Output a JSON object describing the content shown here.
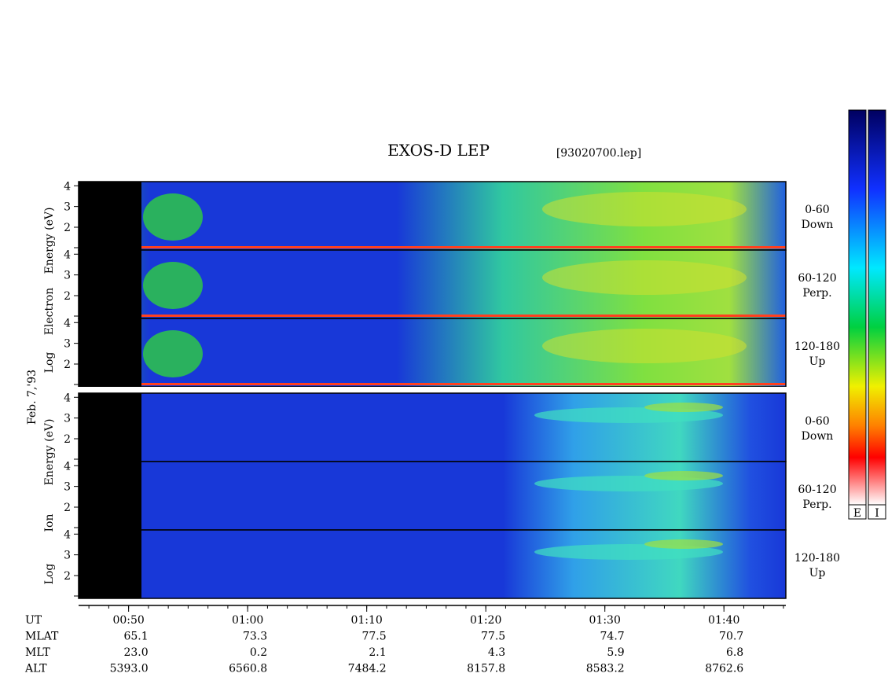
{
  "title": "EXOS-D LEP",
  "file": "[93020700.lep]",
  "date": "Feb. 7,'93",
  "groups": [
    {
      "ylabel": [
        "Log",
        "Electron",
        "Energy (eV)"
      ],
      "ylim": [
        0.9,
        4.2
      ],
      "yticks": [
        4,
        3,
        2
      ],
      "panels": [
        {
          "label": [
            "0-60",
            "Down"
          ]
        },
        {
          "label": [
            "60-120",
            "Perp."
          ]
        },
        {
          "label": [
            "120-180",
            "Up"
          ]
        }
      ]
    },
    {
      "ylabel": [
        "Log",
        "Ion",
        "Energy (eV)"
      ],
      "ylim": [
        0.9,
        4.2
      ],
      "yticks": [
        4,
        3,
        2
      ],
      "panels": [
        {
          "label": [
            "0-60",
            "Down"
          ]
        },
        {
          "label": [
            "60-120",
            "Perp."
          ]
        },
        {
          "label": [
            "120-180",
            "Up"
          ]
        }
      ]
    }
  ],
  "time_axis": {
    "xlim": [
      45.8,
      105.2
    ],
    "xticks": [
      {
        "value": 50,
        "label": "00:50"
      },
      {
        "value": 60,
        "label": "01:00"
      },
      {
        "value": 70,
        "label": "01:10"
      },
      {
        "value": 80,
        "label": "01:20"
      },
      {
        "value": 90,
        "label": "01:30"
      },
      {
        "value": 100,
        "label": "01:40"
      }
    ]
  },
  "ephemeris": [
    {
      "name": "UT"
    },
    {
      "name": "MLAT",
      "values": [
        "65.1",
        "73.3",
        "77.5",
        "77.5",
        "74.7",
        "70.7"
      ]
    },
    {
      "name": "MLT",
      "values": [
        "23.0",
        "0.2",
        "2.1",
        "4.3",
        "5.9",
        "6.8"
      ]
    },
    {
      "name": "ALT",
      "values": [
        "5393.0",
        "6560.8",
        "7484.2",
        "8157.8",
        "8583.2",
        "8762.6"
      ]
    }
  ],
  "colorbars": [
    "E",
    "I"
  ]
}
